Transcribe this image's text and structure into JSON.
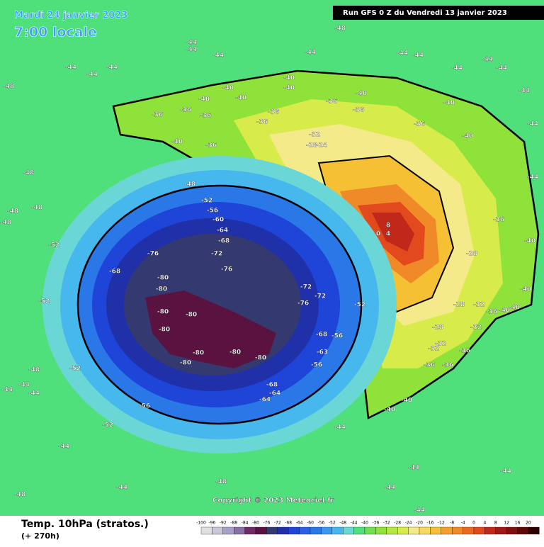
{
  "header": {
    "date": "Mardi 24 janvier 2023",
    "time": "7:00 locale",
    "run": "Run GFS 0 Z du Vendredi 13 janvier 2023"
  },
  "map": {
    "copyright": "Copyright © 2023 Meteociel.fr",
    "labels": [
      "-48",
      "-44",
      "-44",
      "-44",
      "-44",
      "-44",
      "-44",
      "-44",
      "-48",
      "-44",
      "-44",
      "-44",
      "-44",
      "-44",
      "-44",
      "-44",
      "-40",
      "-40",
      "-40",
      "-40",
      "-40",
      "-40",
      "-40",
      "-40",
      "-36",
      "-36",
      "-36",
      "-36",
      "-36",
      "-36",
      "-36",
      "-36",
      "-36",
      "-32",
      "-28",
      "-24",
      "8",
      "4",
      "0",
      "-48",
      "-52",
      "-56",
      "-60",
      "-64",
      "-68",
      "-72",
      "-76",
      "-76",
      "-68",
      "-80",
      "-80",
      "-80",
      "-80",
      "-80",
      "-80",
      "-80",
      "-80",
      "-80",
      "-72",
      "-72",
      "-76",
      "-68",
      "-63",
      "-56",
      "-56",
      "-52",
      "-68",
      "-64",
      "-64",
      "-56",
      "-52",
      "-52",
      "-52",
      "-52",
      "-48",
      "-44",
      "-44",
      "-44",
      "-44",
      "-44",
      "-48",
      "-48",
      "-44",
      "-44",
      "-44",
      "-44",
      "-44",
      "-40",
      "-40",
      "-36",
      "-36",
      "-36",
      "-32",
      "-32",
      "-32",
      "-32",
      "-28",
      "-28",
      "-28",
      "-36",
      "-40",
      "-40",
      "-40",
      "-40",
      "-36",
      "-44",
      "-40",
      "-48",
      "-48",
      "-48",
      "-48"
    ]
  },
  "footer": {
    "title": "Temp. 10hPa (stratos.)",
    "lead": "(+ 270h)",
    "scale": [
      -100,
      -96,
      -92,
      -88,
      -84,
      -80,
      -76,
      -72,
      -68,
      -64,
      -60,
      -56,
      -52,
      -48,
      -44,
      -40,
      -36,
      -32,
      -28,
      -24,
      -20,
      -16,
      -12,
      -8,
      -4,
      0,
      4,
      8,
      12,
      16,
      20
    ]
  }
}
